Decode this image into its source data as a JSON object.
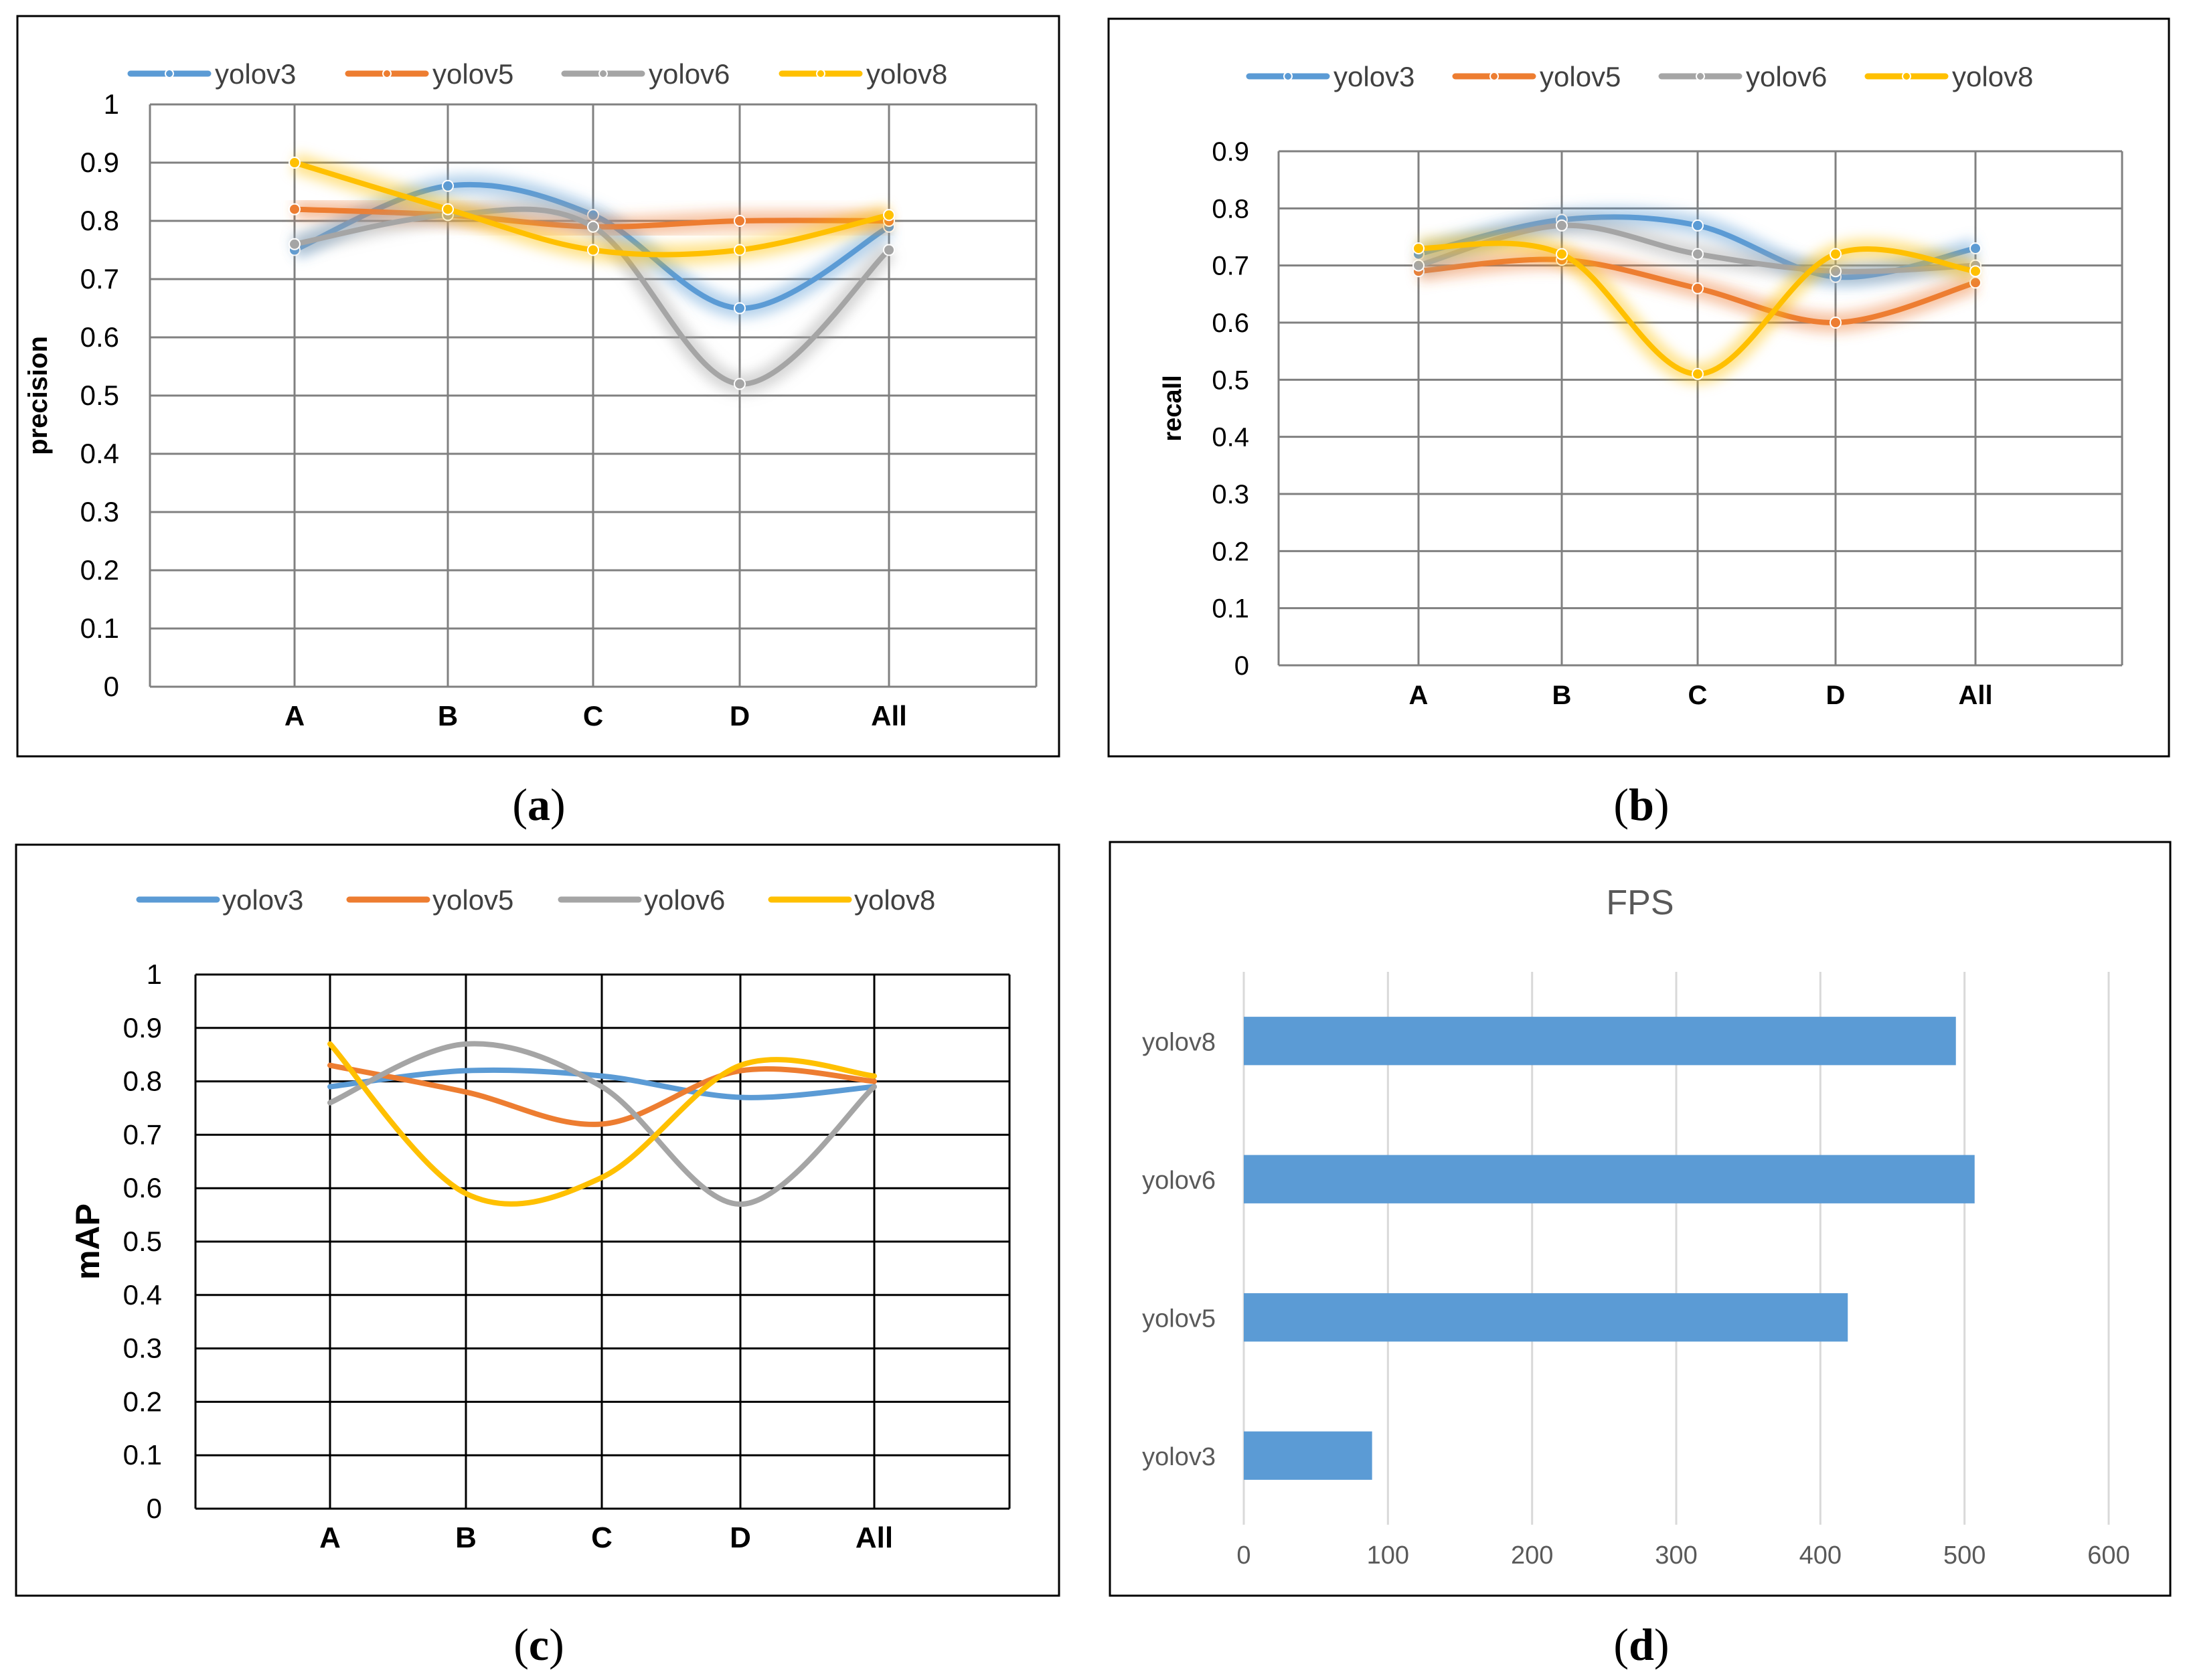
{
  "colors": {
    "yolov3": "#5B9BD5",
    "yolov5": "#ED7D31",
    "yolov6": "#A5A5A5",
    "yolov8": "#FFC000",
    "bar": "#5B9BD5",
    "grid_light": "#D9D9D9",
    "grid_dark": "#000000",
    "text": "#000000",
    "text_gray": "#595959"
  },
  "chart_data": [
    {
      "id": "a",
      "type": "line",
      "caption": "a",
      "title": "",
      "xlabel": "",
      "ylabel": "precision",
      "ylim": [
        0,
        1
      ],
      "yticks": [
        "0",
        "0.1",
        "0.2",
        "0.3",
        "0.4",
        "0.5",
        "0.6",
        "0.7",
        "0.8",
        "0.9",
        "1"
      ],
      "categories": [
        "A",
        "B",
        "C",
        "D",
        "All"
      ],
      "legend": "top",
      "series": [
        {
          "name": "yolov3",
          "color": "#5B9BD5",
          "values": [
            0.75,
            0.86,
            0.81,
            0.65,
            0.79
          ]
        },
        {
          "name": "yolov5",
          "color": "#ED7D31",
          "values": [
            0.82,
            0.81,
            0.79,
            0.8,
            0.8
          ]
        },
        {
          "name": "yolov6",
          "color": "#A5A5A5",
          "values": [
            0.76,
            0.81,
            0.79,
            0.52,
            0.75
          ]
        },
        {
          "name": "yolov8",
          "color": "#FFC000",
          "values": [
            0.9,
            0.82,
            0.75,
            0.75,
            0.81
          ]
        }
      ]
    },
    {
      "id": "b",
      "type": "line",
      "caption": "b",
      "title": "",
      "xlabel": "",
      "ylabel": "recall",
      "ylim": [
        0,
        0.9
      ],
      "yticks": [
        "0",
        "0.1",
        "0.2",
        "0.3",
        "0.4",
        "0.5",
        "0.6",
        "0.7",
        "0.8",
        "0.9"
      ],
      "categories": [
        "A",
        "B",
        "C",
        "D",
        "All"
      ],
      "legend": "top",
      "series": [
        {
          "name": "yolov3",
          "color": "#5B9BD5",
          "values": [
            0.72,
            0.78,
            0.77,
            0.68,
            0.73
          ]
        },
        {
          "name": "yolov5",
          "color": "#ED7D31",
          "values": [
            0.69,
            0.71,
            0.66,
            0.6,
            0.67
          ]
        },
        {
          "name": "yolov6",
          "color": "#A5A5A5",
          "values": [
            0.7,
            0.77,
            0.72,
            0.69,
            0.7
          ]
        },
        {
          "name": "yolov8",
          "color": "#FFC000",
          "values": [
            0.73,
            0.72,
            0.51,
            0.72,
            0.69
          ]
        }
      ]
    },
    {
      "id": "c",
      "type": "line",
      "caption": "c",
      "title": "",
      "xlabel": "",
      "ylabel": "mAP",
      "ylim": [
        0,
        1
      ],
      "yticks": [
        "0",
        "0.1",
        "0.2",
        "0.3",
        "0.4",
        "0.5",
        "0.6",
        "0.7",
        "0.8",
        "0.9",
        "1"
      ],
      "categories": [
        "A",
        "B",
        "C",
        "D",
        "All"
      ],
      "legend": "top",
      "series": [
        {
          "name": "yolov3",
          "color": "#5B9BD5",
          "values": [
            0.79,
            0.82,
            0.81,
            0.77,
            0.79
          ]
        },
        {
          "name": "yolov5",
          "color": "#ED7D31",
          "values": [
            0.83,
            0.78,
            0.72,
            0.82,
            0.8
          ]
        },
        {
          "name": "yolov6",
          "color": "#A5A5A5",
          "values": [
            0.76,
            0.87,
            0.79,
            0.57,
            0.79
          ]
        },
        {
          "name": "yolov8",
          "color": "#FFC000",
          "values": [
            0.87,
            0.59,
            0.62,
            0.83,
            0.81
          ]
        }
      ]
    },
    {
      "id": "d",
      "type": "bar",
      "orientation": "horizontal",
      "caption": "d",
      "title": "FPS",
      "xlabel": "",
      "ylabel": "",
      "xlim": [
        0,
        600
      ],
      "xticks": [
        "0",
        "100",
        "200",
        "300",
        "400",
        "500",
        "600"
      ],
      "categories": [
        "yolov8",
        "yolov6",
        "yolov5",
        "yolov3"
      ],
      "values": [
        494,
        507,
        419,
        89
      ],
      "color": "#5B9BD5"
    }
  ]
}
